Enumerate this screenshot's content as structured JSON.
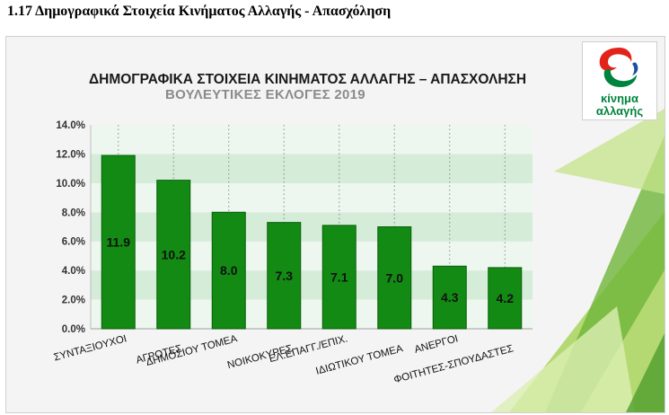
{
  "page": {
    "heading": "1.17 Δημογραφικά Στοιχεία Κινήματος Αλλαγής - Απασχόληση"
  },
  "logo": {
    "line1": "κίνημα",
    "line2": "αλλαγής",
    "colors": {
      "red": "#e2231a",
      "green": "#00843d",
      "blue": "#1b4fa0"
    }
  },
  "chart_data": {
    "type": "bar",
    "title": "ΔΗΜΟΓΡΑΦΙΚΑ ΣΤΟΙΧΕΙΑ ΚΙΝΗΜΑΤΟΣ ΑΛΛΑΓΗΣ – ΑΠΑΣΧΟΛΗΣΗ",
    "subtitle": "ΒΟΥΛΕΥΤΙΚΕΣ ΕΚΛΟΓΕΣ 2019",
    "categories": [
      "ΣΥΝΤΑΞΙΟΥΧΟΙ",
      "ΑΓΡΟΤΕΣ",
      "ΔΗΜΟΣΙΟΥ ΤΟΜΕΑ",
      "ΝΟΙΚΟΚΥΡΕΣ",
      "ΕΛ.ΕΠΑΓΓ./ΕΠΙΧ.",
      "ΙΔΙΩΤΙΚΟΥ ΤΟΜΕΑ",
      "ΑΝΕΡΓΟΙ",
      "ΦΟΙΤΗΤΕΣ-ΣΠΟΥΔΑΣΤΕΣ"
    ],
    "values": [
      11.9,
      10.2,
      8.0,
      7.3,
      7.1,
      7.0,
      4.3,
      4.2
    ],
    "value_labels": [
      "11.9",
      "10.2",
      "8.0",
      "7.3",
      "7.1",
      "7.0",
      "4.3",
      "4.2"
    ],
    "y_ticks": [
      "0.0%",
      "2.0%",
      "4.0%",
      "6.0%",
      "8.0%",
      "10.0%",
      "12.0%",
      "14.0%"
    ],
    "ylim": [
      0,
      14
    ],
    "xlabel": "",
    "ylabel": "",
    "grid": true,
    "legend": "none",
    "colors": {
      "bar": "#138a13",
      "bar_edge": "#0b5e0b",
      "band": "#d4ecd8",
      "band_alt": "#eef7ef"
    }
  }
}
